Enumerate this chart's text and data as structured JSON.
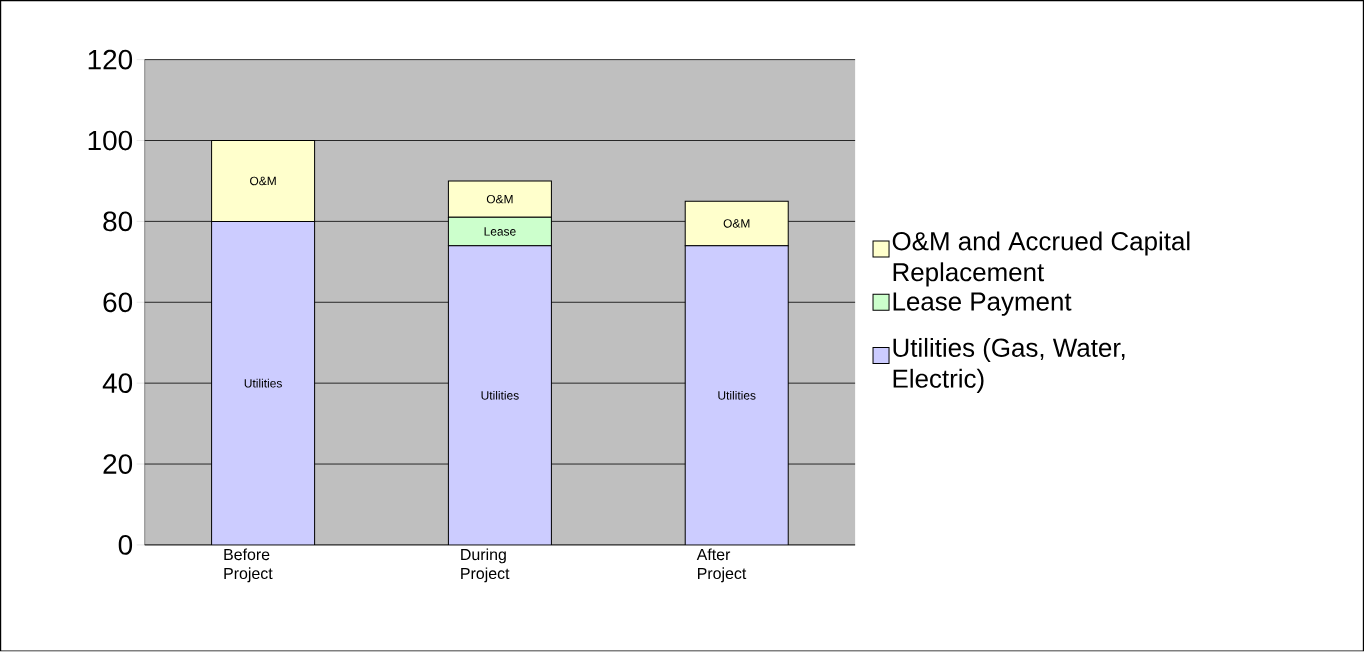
{
  "chart_data": {
    "type": "bar",
    "stacked": true,
    "categories": [
      "Before Project",
      "During Project",
      "After Project"
    ],
    "series": [
      {
        "name": "Utilities (Gas, Water, Electric)",
        "color": "#ccccff",
        "values": [
          80,
          74,
          74
        ],
        "value_labels": [
          "Utilities",
          "Utilities",
          "Utilities"
        ]
      },
      {
        "name": "Lease Payment",
        "color": "#ccffcc",
        "values": [
          0,
          7,
          0
        ],
        "value_labels": [
          null,
          "Lease",
          null
        ]
      },
      {
        "name": "O&M and Accrued Capital Replacement",
        "color": "#ffffcc",
        "values": [
          20,
          9,
          11
        ],
        "value_labels": [
          "O&M",
          "O&M",
          "O&M"
        ]
      }
    ],
    "ylim": [
      0,
      120
    ],
    "yticks": [
      0,
      20,
      40,
      60,
      80,
      100,
      120
    ],
    "grid": "y",
    "legend": "right"
  }
}
